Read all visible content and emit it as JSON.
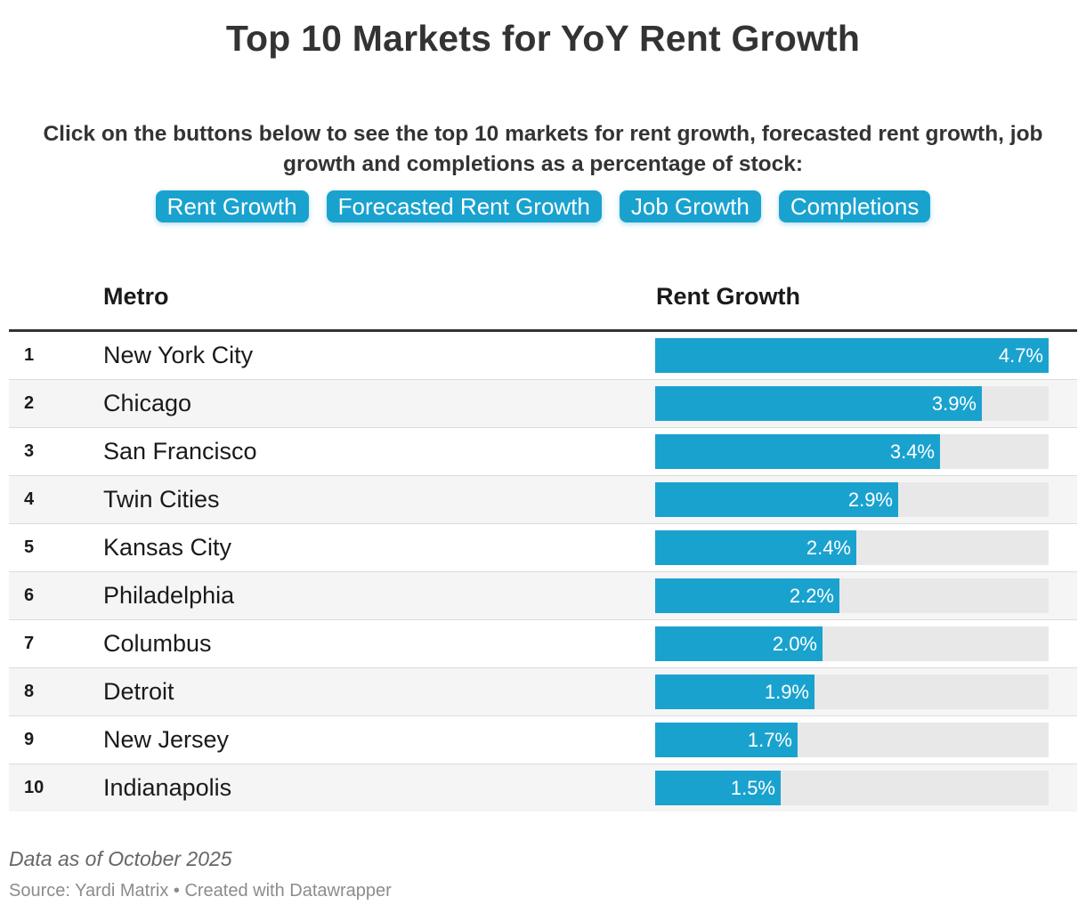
{
  "title": "Top 10 Markets for YoY Rent Growth",
  "subtitle": "Click on the buttons below to see the top 10 markets for rent growth, forecasted rent growth, job growth and completions as a percentage of stock:",
  "buttons": [
    "Rent Growth",
    "Forecasted Rent Growth",
    "Job Growth",
    "Completions"
  ],
  "table": {
    "headers": {
      "rank": "",
      "metro": "Metro",
      "value": "Rent Growth"
    }
  },
  "chart_data": {
    "type": "bar",
    "orientation": "horizontal",
    "title": "Top 10 Markets for YoY Rent Growth",
    "xlabel": "Rent Growth",
    "ylabel": "Metro",
    "xlim": [
      0,
      4.7
    ],
    "unit": "%",
    "ranks": [
      "1",
      "2",
      "3",
      "4",
      "5",
      "6",
      "7",
      "8",
      "9",
      "10"
    ],
    "categories": [
      "New York City",
      "Chicago",
      "San Francisco",
      "Twin Cities",
      "Kansas City",
      "Philadelphia",
      "Columbus",
      "Detroit",
      "New Jersey",
      "Indianapolis"
    ],
    "values": [
      4.7,
      3.9,
      3.4,
      2.9,
      2.4,
      2.2,
      2.0,
      1.9,
      1.7,
      1.5
    ],
    "labels": [
      "4.7%",
      "3.9%",
      "3.4%",
      "2.9%",
      "2.4%",
      "2.2%",
      "2.0%",
      "1.9%",
      "1.7%",
      "1.5%"
    ]
  },
  "colors": {
    "bar": "#1aa2cf",
    "track": "#e8e8e8",
    "button": "#1aa2cf"
  },
  "footnote": "Data as of October 2025",
  "source": "Source: Yardi Matrix • Created with Datawrapper"
}
